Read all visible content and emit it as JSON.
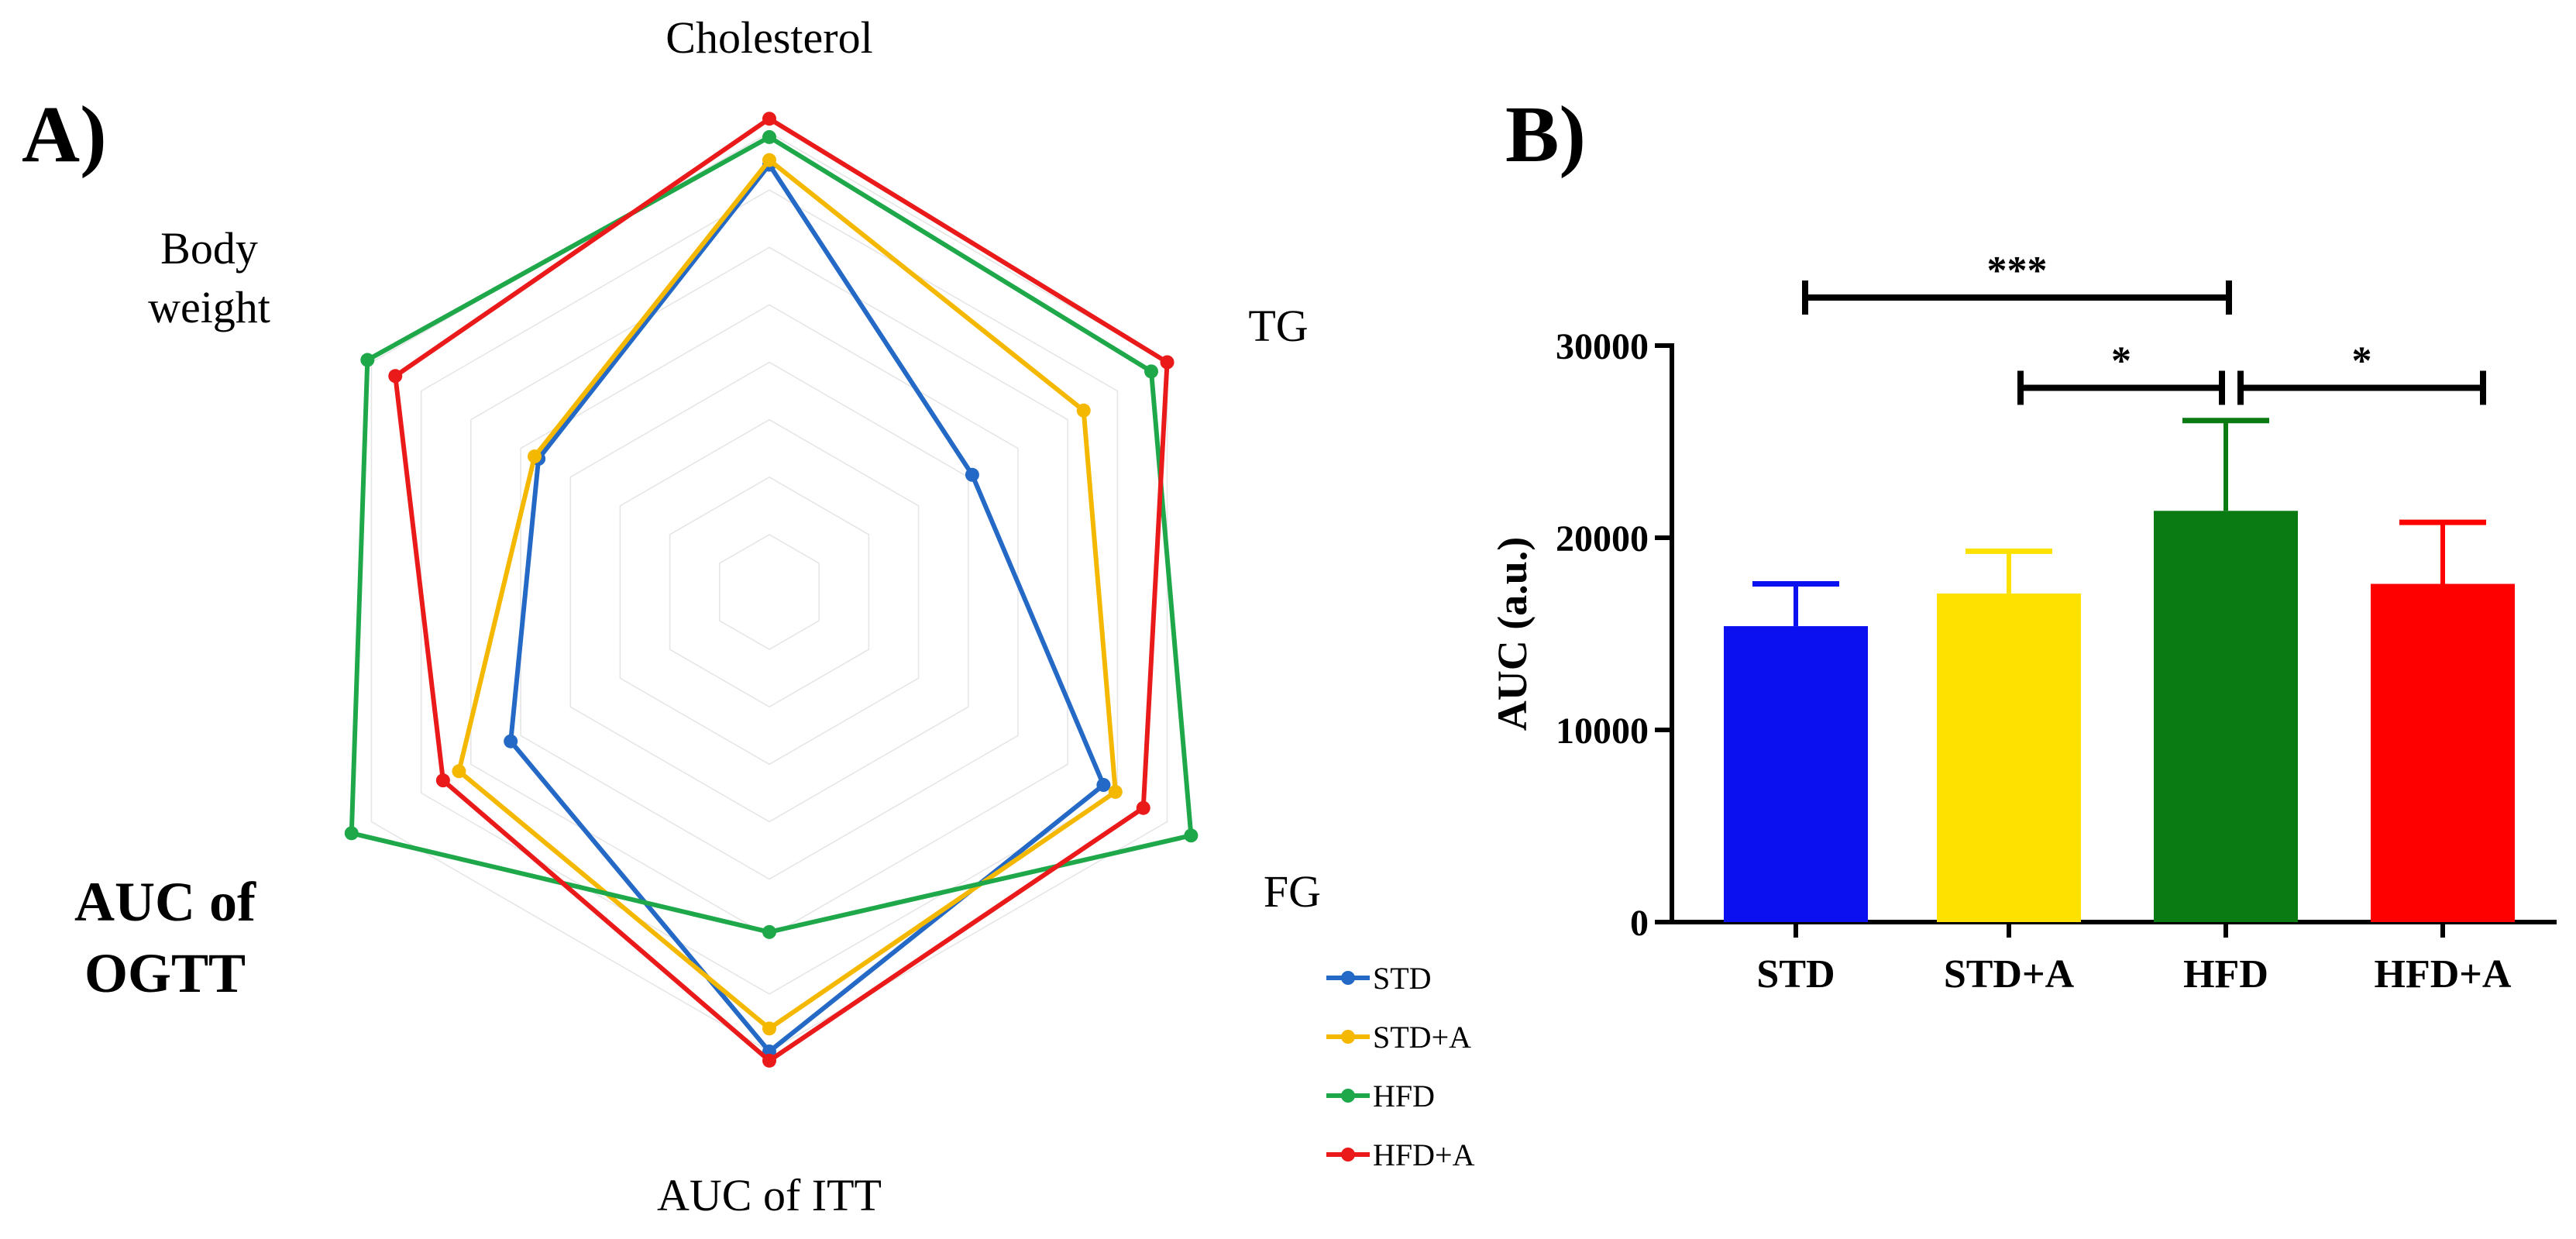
{
  "figure": {
    "panel_a_label": "A)",
    "panel_b_label": "B)"
  },
  "chart_data": [
    {
      "type": "radar",
      "panel": "A",
      "axes": [
        {
          "lines": [
            "Cholesterol"
          ],
          "emphasis": false
        },
        {
          "lines": [
            "TG"
          ],
          "emphasis": false
        },
        {
          "lines": [
            "FG"
          ],
          "emphasis": false
        },
        {
          "lines": [
            "AUC of ITT"
          ],
          "emphasis": false
        },
        {
          "lines": [
            "AUC of",
            "OGTT"
          ],
          "emphasis": true
        },
        {
          "lines": [
            "Body",
            "weight"
          ],
          "emphasis": false
        }
      ],
      "range": [
        0,
        1
      ],
      "grid_levels": 8,
      "series": [
        {
          "name": "STD",
          "color": "#2469c6",
          "values": [
            0.93,
            0.51,
            0.84,
            1.0,
            0.65,
            0.58
          ]
        },
        {
          "name": "STD+A",
          "color": "#f5b800",
          "values": [
            0.94,
            0.79,
            0.87,
            0.95,
            0.78,
            0.59
          ]
        },
        {
          "name": "HFD",
          "color": "#1ea84a",
          "values": [
            0.99,
            0.96,
            1.06,
            0.74,
            1.05,
            1.01
          ]
        },
        {
          "name": "HFD+A",
          "color": "#ea1a1a",
          "values": [
            1.03,
            1.0,
            0.94,
            1.02,
            0.82,
            0.94
          ]
        }
      ],
      "legend": [
        "STD",
        "STD+A",
        "HFD",
        "HFD+A"
      ],
      "legend_position": "bottom-right"
    },
    {
      "type": "bar",
      "panel": "B",
      "categories": [
        "STD",
        "STD+A",
        "HFD",
        "HFD+A"
      ],
      "values": [
        15400,
        17100,
        21400,
        17600
      ],
      "errors": [
        2200,
        2200,
        4700,
        3200
      ],
      "colors": [
        "#0a10f0",
        "#ffe100",
        "#0a7a12",
        "#ff0000"
      ],
      "ylabel": "AUC (a.u.)",
      "ylim": [
        0,
        30000
      ],
      "yticks": [
        0,
        10000,
        20000,
        30000
      ],
      "ytick_labels": [
        "0",
        "10000",
        "20000",
        "30000"
      ],
      "significance": [
        {
          "from": 0,
          "to": 2,
          "label": "***",
          "level": 32500
        },
        {
          "from": 1,
          "to": 2,
          "label": "*",
          "level": 27800
        },
        {
          "from": 2,
          "to": 3,
          "label": "*",
          "level": 27800
        }
      ]
    }
  ]
}
